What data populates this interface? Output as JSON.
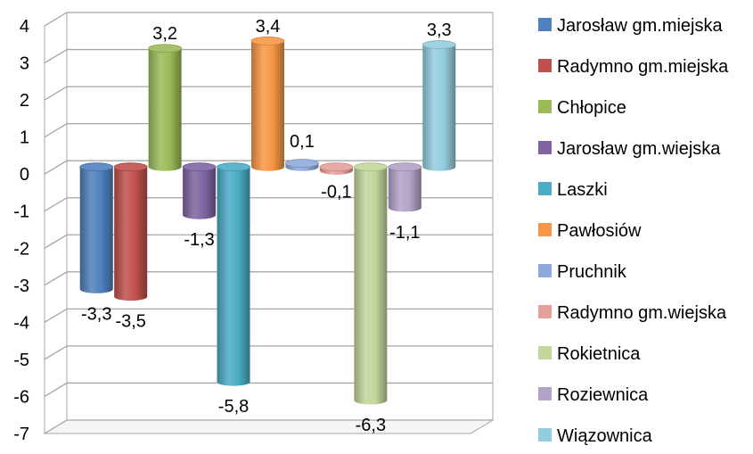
{
  "chart_data": {
    "type": "bar",
    "style": "3d-cylinder",
    "ylim": [
      -7,
      4
    ],
    "yticks": [
      4,
      3,
      2,
      1,
      0,
      -1,
      -2,
      -3,
      -4,
      -5,
      -6,
      -7
    ],
    "ytick_labels": [
      "4",
      "3",
      "2",
      "1",
      "0",
      "-1",
      "-2",
      "-3",
      "-4",
      "-5",
      "-6",
      "-7"
    ],
    "grid": true,
    "legend_position": "right",
    "series": [
      {
        "name": "Jarosław gm.miejska",
        "value": -3.3,
        "label": "-3,3",
        "color": "#4F81BD"
      },
      {
        "name": "Radymno gm.miejska",
        "value": -3.5,
        "label": "-3,5",
        "color": "#C0504D"
      },
      {
        "name": "Chłopice",
        "value": 3.2,
        "label": "3,2",
        "color": "#9BBB59"
      },
      {
        "name": "Jarosław gm.wiejska",
        "value": -1.3,
        "label": "-1,3",
        "color": "#8064A2"
      },
      {
        "name": "Laszki",
        "value": -5.8,
        "label": "-5,8",
        "color": "#4BACC6"
      },
      {
        "name": "Pawłosiów",
        "value": 3.4,
        "label": "3,4",
        "color": "#F79646"
      },
      {
        "name": "Pruchnik",
        "value": 0.1,
        "label": "0,1",
        "color": "#8EA9DB"
      },
      {
        "name": "Radymno gm.wiejska",
        "value": -0.1,
        "label": "-0,1",
        "color": "#E6A09C"
      },
      {
        "name": "Rokietnica",
        "value": -6.3,
        "label": "-6,3",
        "color": "#C3D69B"
      },
      {
        "name": "Roziewnica",
        "value": -1.1,
        "label": "-1,1",
        "color": "#B3A2C7"
      },
      {
        "name": "Wiązownica",
        "value": 3.3,
        "label": "3,3",
        "color": "#93CDDD"
      }
    ]
  }
}
